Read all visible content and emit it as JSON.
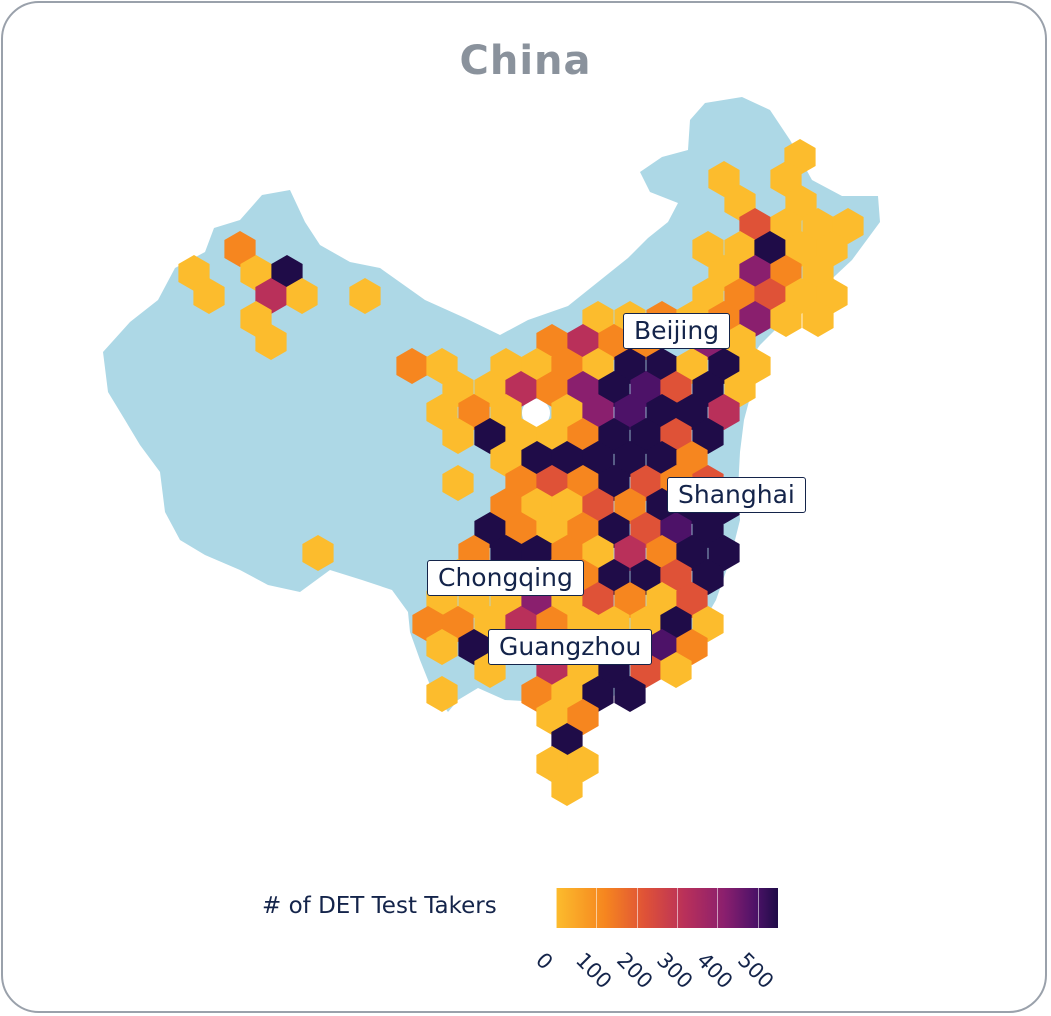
{
  "title": "China",
  "cities": [
    {
      "name": "Beijing"
    },
    {
      "name": "Shanghai"
    },
    {
      "name": "Chongqing"
    },
    {
      "name": "Guangzhou"
    }
  ],
  "legend": {
    "title": "# of DET Test Takers",
    "ticks": [
      "0",
      "100",
      "200",
      "300",
      "400",
      "500"
    ],
    "range": [
      0,
      550
    ]
  },
  "colors": {
    "land": "#add8e6",
    "scale": [
      "#fcbc2d",
      "#f6861f",
      "#df5237",
      "#b9305a",
      "#8a1f6e",
      "#4d1268",
      "#1f0c48"
    ],
    "border": "#9aa1ab",
    "label_text": "#14244a"
  }
}
